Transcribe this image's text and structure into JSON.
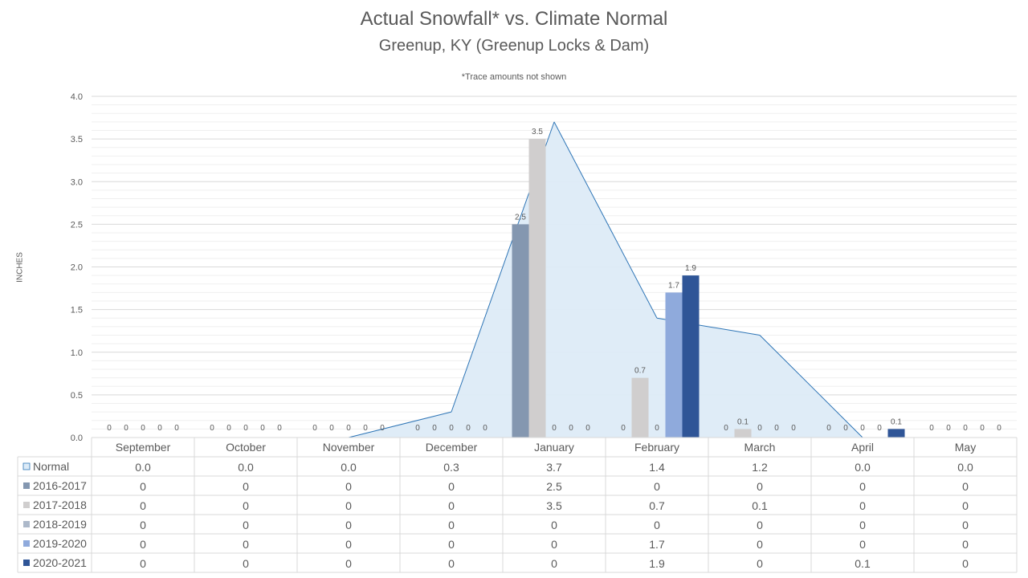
{
  "chart_data": {
    "type": "bar",
    "title": "Actual Snowfall* vs. Climate Normal",
    "subtitle": "Greenup, KY (Greenup Locks & Dam)",
    "note": "*Trace amounts not shown",
    "ylabel": "INCHES",
    "ylim": [
      0,
      4.0
    ],
    "yticks": [
      "0.0",
      "0.5",
      "1.0",
      "1.5",
      "2.0",
      "2.5",
      "3.0",
      "3.5",
      "4.0"
    ],
    "categories": [
      "September",
      "October",
      "November",
      "December",
      "January",
      "February",
      "March",
      "April",
      "May"
    ],
    "normal": {
      "name": "Normal",
      "display_type": "area",
      "values": [
        0.0,
        0.0,
        0.0,
        0.3,
        3.7,
        1.4,
        1.2,
        0.0,
        0.0
      ],
      "table_values": [
        "0.0",
        "0.0",
        "0.0",
        "0.3",
        "3.7",
        "1.4",
        "1.2",
        "0.0",
        "0.0"
      ]
    },
    "series": [
      {
        "name": "2016-2017",
        "values": [
          0,
          0,
          0,
          0,
          2.5,
          0,
          0,
          0,
          0
        ],
        "color": "#8497b0"
      },
      {
        "name": "2017-2018",
        "values": [
          0,
          0,
          0,
          0,
          3.5,
          0.7,
          0.1,
          0,
          0
        ],
        "color": "#d0cece"
      },
      {
        "name": "2018-2019",
        "values": [
          0,
          0,
          0,
          0,
          0,
          0,
          0,
          0,
          0
        ],
        "color": "#adb9ca"
      },
      {
        "name": "2019-2020",
        "values": [
          0,
          0,
          0,
          0,
          0,
          1.7,
          0,
          0,
          0
        ],
        "color": "#8faadc"
      },
      {
        "name": "2020-2021",
        "values": [
          0,
          0,
          0,
          0,
          0,
          1.9,
          0,
          0.1,
          0
        ],
        "color": "#2f5597"
      }
    ],
    "colors": {
      "normal_fill": "#ddebf7",
      "normal_line": "#2e75b6",
      "grid": "#e0e0e0",
      "text": "#595959",
      "table_border": "#d9d9d9"
    },
    "grid": true,
    "legend": "data-table"
  }
}
